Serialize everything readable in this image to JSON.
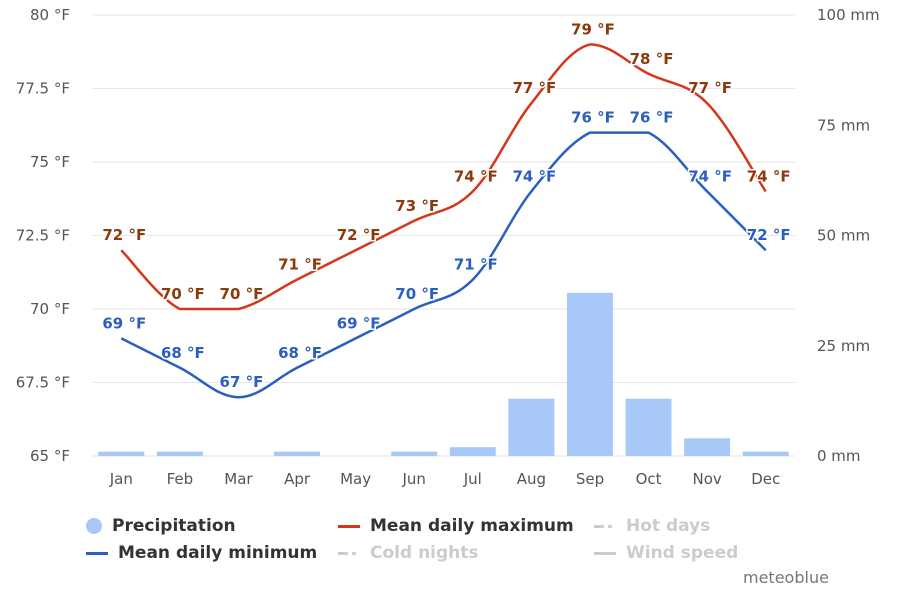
{
  "chart_data": {
    "type": "bar+line",
    "categories": [
      "Jan",
      "Feb",
      "Mar",
      "Apr",
      "May",
      "Jun",
      "Jul",
      "Aug",
      "Sep",
      "Oct",
      "Nov",
      "Dec"
    ],
    "left_axis": {
      "ticks": [
        "65 °F",
        "67.5 °F",
        "70 °F",
        "72.5 °F",
        "75 °F",
        "77.5 °F",
        "80 °F"
      ],
      "range": [
        65,
        80
      ]
    },
    "right_axis": {
      "ticks": [
        "0 mm",
        "25 mm",
        "50 mm",
        "75 mm",
        "100 mm"
      ],
      "range": [
        0,
        100
      ]
    },
    "grid": true,
    "legend_position": "bottom",
    "series": [
      {
        "name": "Precipitation",
        "kind": "bar",
        "axis": "right",
        "color": "#a8c8f8",
        "values": [
          1,
          1,
          0,
          1,
          0,
          1,
          2,
          13,
          37,
          13,
          4,
          1
        ]
      },
      {
        "name": "Mean daily maximum",
        "kind": "line",
        "axis": "left",
        "color": "#d6361a",
        "label_color": "#8b3a0e",
        "values": [
          72,
          70,
          70,
          71,
          72,
          73,
          74,
          77,
          79,
          78,
          77,
          74
        ],
        "labels": [
          "72 °F",
          "70 °F",
          "70 °F",
          "71 °F",
          "72 °F",
          "73 °F",
          "74 °F",
          "77 °F",
          "79 °F",
          "78 °F",
          "77 °F",
          "74 °F"
        ]
      },
      {
        "name": "Mean daily minimum",
        "kind": "line",
        "axis": "left",
        "color": "#2a5fbf",
        "label_color": "#2a5fbf",
        "values": [
          69,
          68,
          67,
          68,
          69,
          70,
          71,
          74,
          76,
          76,
          74,
          72
        ],
        "labels": [
          "69 °F",
          "68 °F",
          "67 °F",
          "68 °F",
          "69 °F",
          "70 °F",
          "71 °F",
          "74 °F",
          "76 °F",
          "76 °F",
          "74 °F",
          "72 °F"
        ]
      }
    ]
  },
  "legend": {
    "precipitation": "Precipitation",
    "mean_max": "Mean daily maximum",
    "hot_days": "Hot days",
    "mean_min": "Mean daily minimum",
    "cold_nights": "Cold nights",
    "wind_speed": "Wind speed"
  },
  "credit": "meteoblue"
}
